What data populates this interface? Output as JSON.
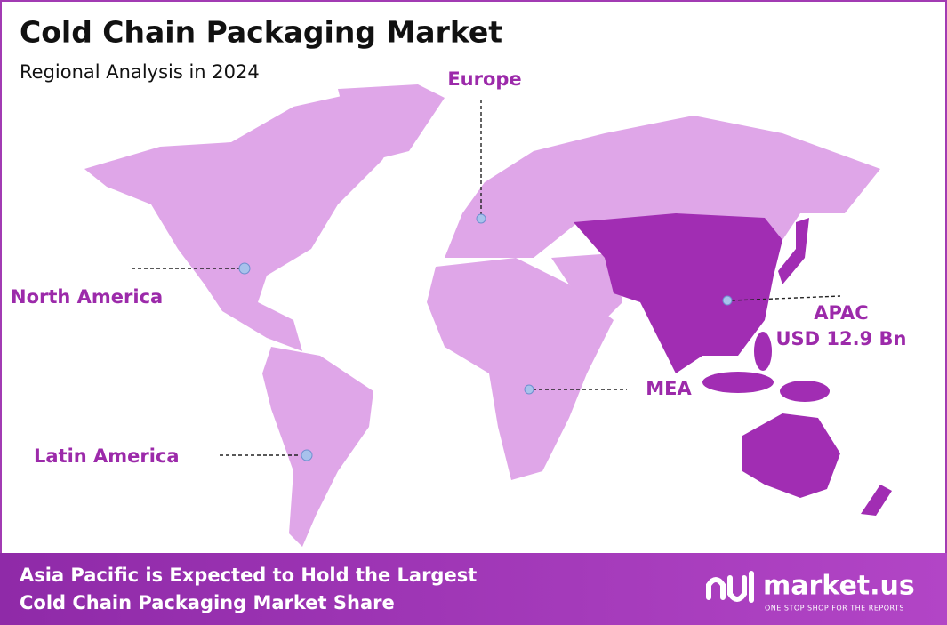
{
  "header": {
    "title": "Cold Chain Packaging Market",
    "subtitle": "Regional Analysis in 2024"
  },
  "regions": [
    {
      "label": "Europe"
    },
    {
      "label": "North America"
    },
    {
      "label": "APAC",
      "value": "USD 12.9 Bn"
    },
    {
      "label": "MEA"
    },
    {
      "label": "Latin America"
    }
  ],
  "footer": {
    "lines": [
      "Asia Pacific is Expected to Hold the Largest",
      "Cold Chain Packaging Market Share"
    ],
    "brand": "market.us",
    "tagline": "ONE STOP SHOP FOR THE REPORTS"
  }
}
